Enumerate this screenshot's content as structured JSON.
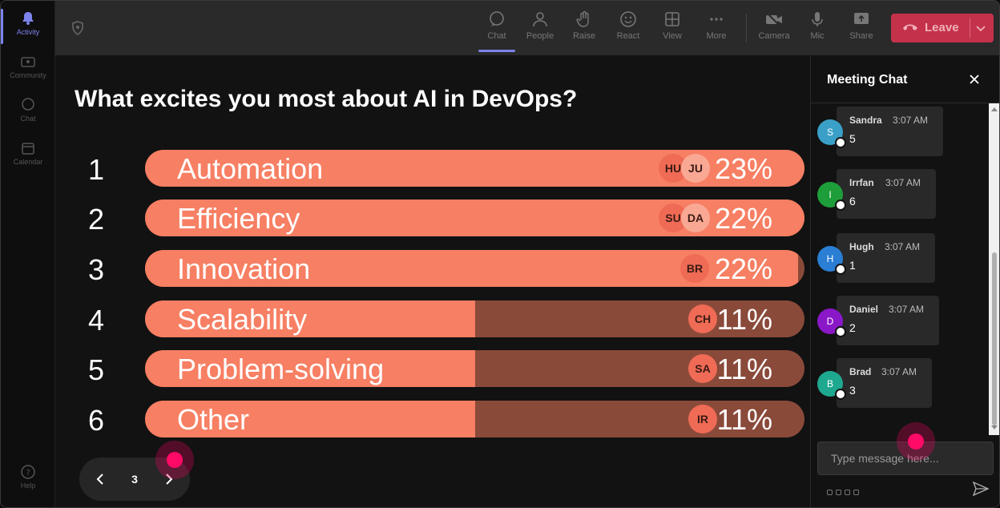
{
  "rail": {
    "items": [
      {
        "label": "Activity",
        "active": true
      },
      {
        "label": "Community"
      },
      {
        "label": "Chat"
      },
      {
        "label": "Calendar"
      }
    ],
    "help_label": "Help"
  },
  "toolbar": {
    "buttons": [
      {
        "label": "Chat",
        "icon": "chat-icon",
        "active": true
      },
      {
        "label": "People",
        "icon": "people-icon"
      },
      {
        "label": "Raise",
        "icon": "raise-hand-icon"
      },
      {
        "label": "React",
        "icon": "react-icon"
      },
      {
        "label": "View",
        "icon": "view-icon"
      },
      {
        "label": "More",
        "icon": "more-icon"
      },
      {
        "label": "Camera",
        "icon": "camera-off-icon"
      },
      {
        "label": "Mic",
        "icon": "mic-icon"
      },
      {
        "label": "Share",
        "icon": "share-icon"
      }
    ],
    "leave_label": "Leave"
  },
  "poll": {
    "question": "What excites you most about AI in DevOps?",
    "options": [
      {
        "rank": "1",
        "label": "Automation",
        "percent_label": "23%",
        "fill": 1.0,
        "voters": [
          "HU",
          "JU"
        ]
      },
      {
        "rank": "2",
        "label": "Efficiency",
        "percent_label": "22%",
        "fill": 1.0,
        "voters": [
          "SU",
          "DA"
        ]
      },
      {
        "rank": "3",
        "label": "Innovation",
        "percent_label": "22%",
        "fill": 0.99,
        "voters": [
          "BR"
        ]
      },
      {
        "rank": "4",
        "label": "Scalability",
        "percent_label": "11%",
        "fill": 0.5,
        "voters": [
          "CH"
        ]
      },
      {
        "rank": "5",
        "label": "Problem-solving",
        "percent_label": "11%",
        "fill": 0.5,
        "voters": [
          "SA"
        ]
      },
      {
        "rank": "6",
        "label": "Other",
        "percent_label": "11%",
        "fill": 0.5,
        "voters": [
          "IR"
        ]
      }
    ],
    "pager": {
      "page": "3"
    }
  },
  "chat": {
    "title": "Meeting Chat",
    "messages": [
      {
        "initial": "S",
        "name": "Sandra",
        "time": "3:07 AM",
        "text": "5",
        "color": "#3aa0c8"
      },
      {
        "initial": "I",
        "name": "Irrfan",
        "time": "3:07 AM",
        "text": "6",
        "color": "#1e9e3a"
      },
      {
        "initial": "H",
        "name": "Hugh",
        "time": "3:07 AM",
        "text": "1",
        "color": "#2a7fd4"
      },
      {
        "initial": "D",
        "name": "Daniel",
        "time": "3:07 AM",
        "text": "2",
        "color": "#8a18c8"
      },
      {
        "initial": "B",
        "name": "Brad",
        "time": "3:07 AM",
        "text": "3",
        "color": "#1fa890"
      }
    ],
    "input_placeholder": "Type message here..."
  },
  "colors": {
    "accent": "#7b83eb",
    "bar_fill": "#f77f63",
    "bar_track": "#8a4a3a",
    "leave": "#c4314b"
  }
}
